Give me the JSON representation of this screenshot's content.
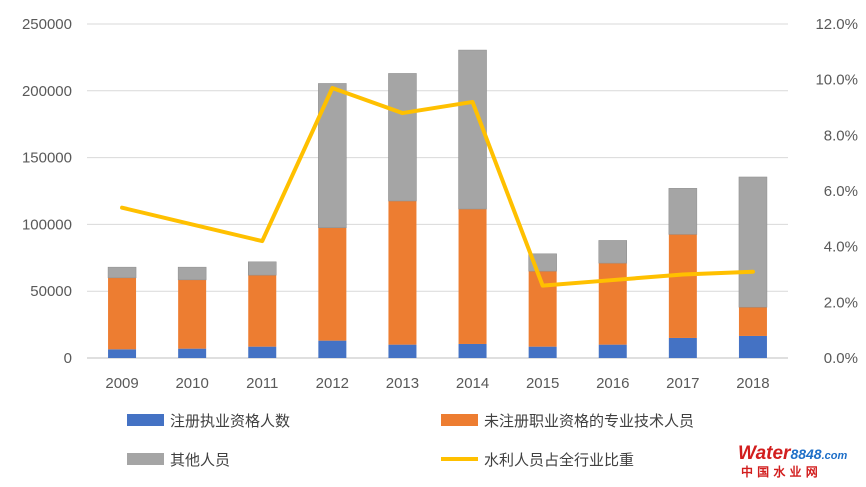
{
  "chart_data": {
    "type": "bar",
    "stacked": true,
    "categories": [
      "2009",
      "2010",
      "2011",
      "2012",
      "2013",
      "2014",
      "2015",
      "2016",
      "2017",
      "2018"
    ],
    "series": [
      {
        "name": "注册执业资格人数",
        "color": "#4472C4",
        "axis": "left",
        "values": [
          6500,
          7000,
          8500,
          13000,
          10000,
          10500,
          8500,
          10000,
          15000,
          16500
        ]
      },
      {
        "name": "未注册职业资格的专业技术人员",
        "color": "#ED7D31",
        "axis": "left",
        "values": [
          53500,
          51500,
          53500,
          84500,
          107500,
          101000,
          56500,
          61000,
          77500,
          21500
        ]
      },
      {
        "name": "其他人员",
        "color": "#A5A5A5",
        "axis": "left",
        "values": [
          8000,
          9500,
          10000,
          108000,
          95500,
          119000,
          13000,
          17000,
          34500,
          97500
        ]
      },
      {
        "name": "水利人员占全行业比重",
        "type": "line",
        "color": "#FFC000",
        "axis": "right",
        "values": [
          5.4,
          4.8,
          4.2,
          9.7,
          8.8,
          9.2,
          2.6,
          2.8,
          3.0,
          3.1
        ]
      }
    ],
    "y_left": {
      "min": 0,
      "max": 250000,
      "ticks": [
        "0",
        "50000",
        "100000",
        "150000",
        "200000",
        "250000"
      ]
    },
    "y_right": {
      "min": 0,
      "max": 12,
      "ticks": [
        "0.0%",
        "2.0%",
        "4.0%",
        "6.0%",
        "8.0%",
        "10.0%",
        "12.0%"
      ]
    },
    "grid": true,
    "legend_position": "bottom",
    "title": "",
    "xlabel": "",
    "ylabel": ""
  },
  "watermark": {
    "brand_main": "Water",
    "brand_num": "8848",
    "brand_suffix": ".com",
    "brand_cn": "中 国 水 业 网"
  }
}
